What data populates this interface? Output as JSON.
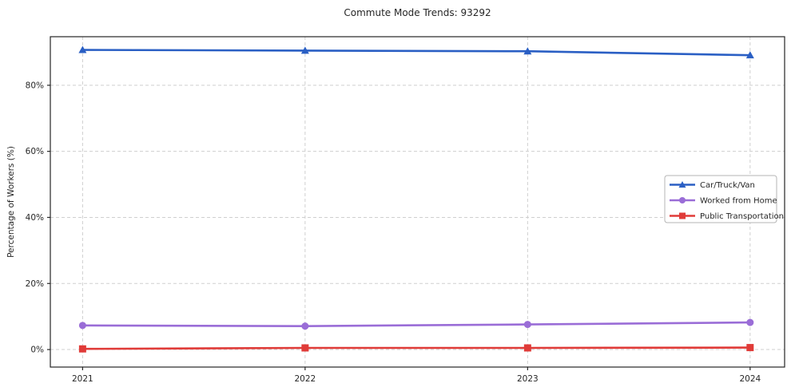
{
  "chart_data": {
    "type": "line",
    "title": "Commute Mode Trends: 93292",
    "xlabel": "",
    "ylabel": "Percentage of Workers (%)",
    "x": [
      2021,
      2022,
      2023,
      2024
    ],
    "x_tick_labels": [
      "2021",
      "2022",
      "2023",
      "2024"
    ],
    "y_ticks": [
      0,
      20,
      40,
      60,
      80
    ],
    "y_tick_labels": [
      "0%",
      "20%",
      "40%",
      "60%",
      "80%"
    ],
    "xlim": [
      2020.855,
      2024.155
    ],
    "ylim": [
      -5.3,
      94.7
    ],
    "grid": true,
    "grid_style": "dashed",
    "legend_position": "center-right",
    "series": [
      {
        "name": "Car/Truck/Van",
        "marker": "triangle",
        "color": "#2a5fc4",
        "values": [
          90.7,
          90.5,
          90.3,
          89.1
        ]
      },
      {
        "name": "Worked from Home",
        "marker": "circle",
        "color": "#9a6dd7",
        "values": [
          7.3,
          7.1,
          7.6,
          8.2
        ]
      },
      {
        "name": "Public Transportation",
        "marker": "square",
        "color": "#e03b38",
        "values": [
          0.2,
          0.5,
          0.5,
          0.6
        ]
      }
    ]
  }
}
